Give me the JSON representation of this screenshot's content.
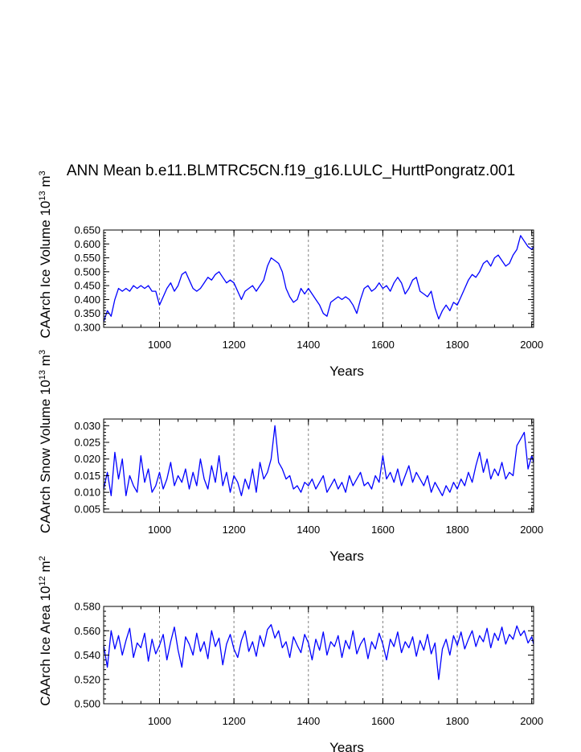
{
  "title": "ANN Mean b.e11.BLMTRC5CN.f19_g16.LULC_HurttPongratz.001",
  "colors": {
    "line": "#0000ff",
    "axis": "#000000",
    "grid": "#808080"
  },
  "chart_data": [
    {
      "type": "line",
      "ylabel_prefix": "CAArch Ice Volume 10",
      "ylabel_exp": "13",
      "ylabel_unit": " m",
      "ylabel_unit_exp": "3",
      "xlabel": "Years",
      "xlim": [
        850,
        2005
      ],
      "ylim": [
        0.3,
        0.65
      ],
      "yticks": [
        "0.300",
        "0.350",
        "0.400",
        "0.450",
        "0.500",
        "0.550",
        "0.600",
        "0.650"
      ],
      "xticks": [
        "1000",
        "1200",
        "1400",
        "1600",
        "1800",
        "2000"
      ],
      "grid_x": [
        1000,
        1200,
        1400,
        1600,
        1800
      ],
      "series": [
        {
          "name": "CAArch Ice Volume",
          "x": [
            850,
            860,
            870,
            880,
            890,
            900,
            910,
            920,
            930,
            940,
            950,
            960,
            970,
            980,
            990,
            1000,
            1010,
            1020,
            1030,
            1040,
            1050,
            1060,
            1070,
            1080,
            1090,
            1100,
            1110,
            1120,
            1130,
            1140,
            1150,
            1160,
            1170,
            1180,
            1190,
            1200,
            1210,
            1220,
            1230,
            1240,
            1250,
            1260,
            1270,
            1280,
            1290,
            1300,
            1310,
            1320,
            1330,
            1340,
            1350,
            1360,
            1370,
            1380,
            1390,
            1400,
            1410,
            1420,
            1430,
            1440,
            1450,
            1460,
            1470,
            1480,
            1490,
            1500,
            1510,
            1520,
            1530,
            1540,
            1550,
            1560,
            1570,
            1580,
            1590,
            1600,
            1610,
            1620,
            1630,
            1640,
            1650,
            1660,
            1670,
            1680,
            1690,
            1700,
            1710,
            1720,
            1730,
            1740,
            1750,
            1760,
            1770,
            1780,
            1790,
            1800,
            1810,
            1820,
            1830,
            1840,
            1850,
            1860,
            1870,
            1880,
            1890,
            1900,
            1910,
            1920,
            1930,
            1940,
            1950,
            1960,
            1970,
            1980,
            1990,
            2000,
            2005
          ],
          "values": [
            0.32,
            0.36,
            0.34,
            0.4,
            0.44,
            0.43,
            0.44,
            0.43,
            0.45,
            0.44,
            0.45,
            0.44,
            0.45,
            0.43,
            0.43,
            0.38,
            0.41,
            0.44,
            0.46,
            0.43,
            0.45,
            0.49,
            0.5,
            0.47,
            0.44,
            0.43,
            0.44,
            0.46,
            0.48,
            0.47,
            0.49,
            0.5,
            0.48,
            0.46,
            0.47,
            0.46,
            0.43,
            0.4,
            0.43,
            0.44,
            0.45,
            0.43,
            0.45,
            0.47,
            0.52,
            0.55,
            0.54,
            0.53,
            0.5,
            0.44,
            0.41,
            0.39,
            0.4,
            0.44,
            0.42,
            0.44,
            0.42,
            0.4,
            0.38,
            0.35,
            0.34,
            0.39,
            0.4,
            0.41,
            0.4,
            0.41,
            0.4,
            0.38,
            0.35,
            0.4,
            0.44,
            0.45,
            0.43,
            0.44,
            0.46,
            0.44,
            0.45,
            0.43,
            0.46,
            0.48,
            0.46,
            0.42,
            0.44,
            0.47,
            0.48,
            0.43,
            0.42,
            0.41,
            0.43,
            0.37,
            0.33,
            0.36,
            0.38,
            0.36,
            0.39,
            0.38,
            0.41,
            0.44,
            0.47,
            0.49,
            0.48,
            0.5,
            0.53,
            0.54,
            0.52,
            0.55,
            0.56,
            0.54,
            0.52,
            0.53,
            0.56,
            0.58,
            0.63,
            0.61,
            0.59,
            0.58,
            0.59
          ]
        }
      ]
    },
    {
      "type": "line",
      "ylabel_prefix": "CAArch Snow Volume 10",
      "ylabel_exp": "13",
      "ylabel_unit": " m",
      "ylabel_unit_exp": "3",
      "xlabel": "Years",
      "xlim": [
        850,
        2005
      ],
      "ylim": [
        0.004,
        0.032
      ],
      "yticks": [
        "0.005",
        "0.010",
        "0.015",
        "0.020",
        "0.025",
        "0.030"
      ],
      "xticks": [
        "1000",
        "1200",
        "1400",
        "1600",
        "1800",
        "2000"
      ],
      "grid_x": [
        1000,
        1200,
        1400,
        1600,
        1800
      ],
      "series": [
        {
          "name": "CAArch Snow Volume",
          "x": [
            850,
            860,
            870,
            880,
            890,
            900,
            910,
            920,
            930,
            940,
            950,
            960,
            970,
            980,
            990,
            1000,
            1010,
            1020,
            1030,
            1040,
            1050,
            1060,
            1070,
            1080,
            1090,
            1100,
            1110,
            1120,
            1130,
            1140,
            1150,
            1160,
            1170,
            1180,
            1190,
            1200,
            1210,
            1220,
            1230,
            1240,
            1250,
            1260,
            1270,
            1280,
            1290,
            1300,
            1310,
            1320,
            1330,
            1340,
            1350,
            1360,
            1370,
            1380,
            1390,
            1400,
            1410,
            1420,
            1430,
            1440,
            1450,
            1460,
            1470,
            1480,
            1490,
            1500,
            1510,
            1520,
            1530,
            1540,
            1550,
            1560,
            1570,
            1580,
            1590,
            1600,
            1610,
            1620,
            1630,
            1640,
            1650,
            1660,
            1670,
            1680,
            1690,
            1700,
            1710,
            1720,
            1730,
            1740,
            1750,
            1760,
            1770,
            1780,
            1790,
            1800,
            1810,
            1820,
            1830,
            1840,
            1850,
            1860,
            1870,
            1880,
            1890,
            1900,
            1910,
            1920,
            1930,
            1940,
            1950,
            1960,
            1970,
            1980,
            1990,
            2000,
            2005
          ],
          "values": [
            0.011,
            0.016,
            0.009,
            0.022,
            0.014,
            0.02,
            0.009,
            0.015,
            0.012,
            0.01,
            0.021,
            0.013,
            0.017,
            0.01,
            0.012,
            0.016,
            0.011,
            0.014,
            0.019,
            0.012,
            0.015,
            0.013,
            0.017,
            0.011,
            0.016,
            0.012,
            0.02,
            0.014,
            0.011,
            0.018,
            0.013,
            0.021,
            0.012,
            0.016,
            0.01,
            0.015,
            0.013,
            0.009,
            0.014,
            0.011,
            0.017,
            0.01,
            0.019,
            0.014,
            0.016,
            0.02,
            0.03,
            0.019,
            0.017,
            0.014,
            0.015,
            0.011,
            0.012,
            0.01,
            0.013,
            0.012,
            0.014,
            0.011,
            0.013,
            0.015,
            0.01,
            0.012,
            0.014,
            0.011,
            0.013,
            0.01,
            0.015,
            0.012,
            0.014,
            0.016,
            0.012,
            0.013,
            0.011,
            0.015,
            0.013,
            0.021,
            0.014,
            0.016,
            0.013,
            0.017,
            0.012,
            0.015,
            0.018,
            0.013,
            0.016,
            0.014,
            0.012,
            0.015,
            0.01,
            0.013,
            0.011,
            0.009,
            0.012,
            0.01,
            0.013,
            0.011,
            0.014,
            0.012,
            0.016,
            0.013,
            0.018,
            0.022,
            0.016,
            0.02,
            0.014,
            0.017,
            0.015,
            0.019,
            0.014,
            0.016,
            0.015,
            0.024,
            0.026,
            0.028,
            0.017,
            0.021,
            0.019
          ]
        }
      ]
    },
    {
      "type": "line",
      "ylabel_prefix": "CAArch Ice Area 10",
      "ylabel_exp": "12",
      "ylabel_unit": " m",
      "ylabel_unit_exp": "2",
      "xlabel": "Years",
      "xlim": [
        850,
        2005
      ],
      "ylim": [
        0.5,
        0.58
      ],
      "yticks": [
        "0.500",
        "0.520",
        "0.540",
        "0.560",
        "0.580"
      ],
      "xticks": [
        "1000",
        "1200",
        "1400",
        "1600",
        "1800",
        "2000"
      ],
      "grid_x": [
        1000,
        1200,
        1400,
        1600,
        1800
      ],
      "series": [
        {
          "name": "CAArch Ice Area",
          "x": [
            850,
            860,
            870,
            880,
            890,
            900,
            910,
            920,
            930,
            940,
            950,
            960,
            970,
            980,
            990,
            1000,
            1010,
            1020,
            1030,
            1040,
            1050,
            1060,
            1070,
            1080,
            1090,
            1100,
            1110,
            1120,
            1130,
            1140,
            1150,
            1160,
            1170,
            1180,
            1190,
            1200,
            1210,
            1220,
            1230,
            1240,
            1250,
            1260,
            1270,
            1280,
            1290,
            1300,
            1310,
            1320,
            1330,
            1340,
            1350,
            1360,
            1370,
            1380,
            1390,
            1400,
            1410,
            1420,
            1430,
            1440,
            1450,
            1460,
            1470,
            1480,
            1490,
            1500,
            1510,
            1520,
            1530,
            1540,
            1550,
            1560,
            1570,
            1580,
            1590,
            1600,
            1610,
            1620,
            1630,
            1640,
            1650,
            1660,
            1670,
            1680,
            1690,
            1700,
            1710,
            1720,
            1730,
            1740,
            1750,
            1760,
            1770,
            1780,
            1790,
            1800,
            1810,
            1820,
            1830,
            1840,
            1850,
            1860,
            1870,
            1880,
            1890,
            1900,
            1910,
            1920,
            1930,
            1940,
            1950,
            1960,
            1970,
            1980,
            1990,
            2000,
            2005
          ],
          "values": [
            0.548,
            0.53,
            0.56,
            0.545,
            0.556,
            0.54,
            0.552,
            0.562,
            0.538,
            0.55,
            0.546,
            0.558,
            0.535,
            0.553,
            0.541,
            0.548,
            0.557,
            0.536,
            0.551,
            0.563,
            0.544,
            0.53,
            0.555,
            0.549,
            0.54,
            0.558,
            0.543,
            0.551,
            0.537,
            0.56,
            0.547,
            0.554,
            0.532,
            0.549,
            0.557,
            0.545,
            0.538,
            0.552,
            0.56,
            0.543,
            0.551,
            0.539,
            0.556,
            0.547,
            0.561,
            0.565,
            0.554,
            0.56,
            0.546,
            0.551,
            0.538,
            0.555,
            0.548,
            0.542,
            0.557,
            0.55,
            0.536,
            0.553,
            0.544,
            0.559,
            0.54,
            0.551,
            0.547,
            0.556,
            0.538,
            0.552,
            0.545,
            0.56,
            0.541,
            0.549,
            0.554,
            0.537,
            0.551,
            0.545,
            0.558,
            0.549,
            0.536,
            0.553,
            0.547,
            0.559,
            0.542,
            0.551,
            0.546,
            0.555,
            0.539,
            0.552,
            0.544,
            0.557,
            0.541,
            0.55,
            0.52,
            0.545,
            0.553,
            0.54,
            0.556,
            0.548,
            0.559,
            0.545,
            0.553,
            0.56,
            0.547,
            0.556,
            0.551,
            0.562,
            0.546,
            0.558,
            0.552,
            0.563,
            0.549,
            0.557,
            0.553,
            0.564,
            0.556,
            0.56,
            0.55,
            0.555,
            0.549
          ]
        }
      ]
    }
  ]
}
